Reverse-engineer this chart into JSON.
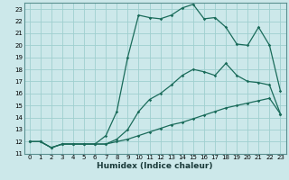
{
  "xlabel": "Humidex (Indice chaleur)",
  "ylabel": "",
  "bg_color": "#cce8ea",
  "grid_color": "#9fcfcf",
  "line_color": "#1a6b5a",
  "xlim": [
    -0.5,
    23.5
  ],
  "ylim": [
    11,
    23.5
  ],
  "xticks": [
    0,
    1,
    2,
    3,
    4,
    5,
    6,
    7,
    8,
    9,
    10,
    11,
    12,
    13,
    14,
    15,
    16,
    17,
    18,
    19,
    20,
    21,
    22,
    23
  ],
  "yticks": [
    11,
    12,
    13,
    14,
    15,
    16,
    17,
    18,
    19,
    20,
    21,
    22,
    23
  ],
  "line1_x": [
    0,
    1,
    2,
    3,
    4,
    5,
    6,
    7,
    8,
    9,
    10,
    11,
    12,
    13,
    14,
    15,
    16,
    17,
    18,
    19,
    20,
    21,
    22,
    23
  ],
  "line1_y": [
    12,
    12,
    11.5,
    11.8,
    11.8,
    11.8,
    11.8,
    11.8,
    12.0,
    12.2,
    12.5,
    12.8,
    13.1,
    13.4,
    13.6,
    13.9,
    14.2,
    14.5,
    14.8,
    15.0,
    15.2,
    15.4,
    15.6,
    14.3
  ],
  "line2_x": [
    0,
    1,
    2,
    3,
    4,
    5,
    6,
    7,
    8,
    9,
    10,
    11,
    12,
    13,
    14,
    15,
    16,
    17,
    18,
    19,
    20,
    21,
    22,
    23
  ],
  "line2_y": [
    12,
    12,
    11.5,
    11.8,
    11.8,
    11.8,
    11.8,
    11.8,
    12.2,
    13.0,
    14.5,
    15.5,
    16.0,
    16.7,
    17.5,
    18.0,
    17.8,
    17.5,
    18.5,
    17.5,
    17.0,
    16.9,
    16.7,
    14.3
  ],
  "line3_x": [
    0,
    1,
    2,
    3,
    4,
    5,
    6,
    7,
    8,
    9,
    10,
    11,
    12,
    13,
    14,
    15,
    16,
    17,
    18,
    19,
    20,
    21,
    22,
    23
  ],
  "line3_y": [
    12,
    12,
    11.5,
    11.8,
    11.8,
    11.8,
    11.8,
    12.5,
    14.5,
    19.0,
    22.5,
    22.3,
    22.2,
    22.5,
    23.1,
    23.4,
    22.2,
    22.3,
    21.5,
    20.1,
    20.0,
    21.5,
    20.0,
    16.2
  ]
}
